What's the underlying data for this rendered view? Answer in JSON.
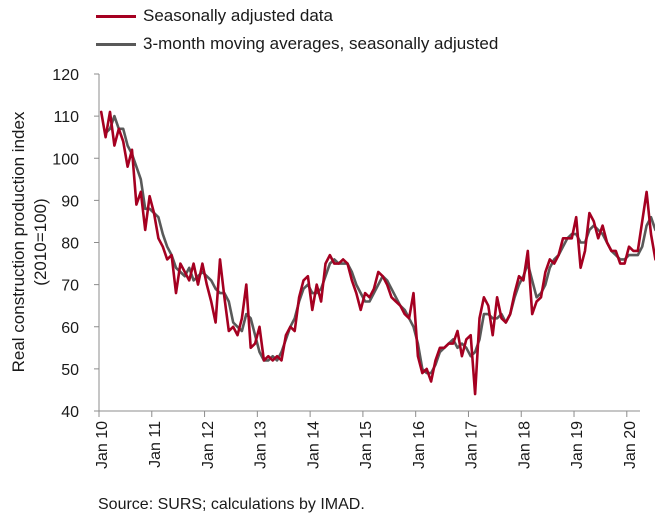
{
  "chart_data": {
    "type": "line",
    "ylabel_line1": "Real construction production index",
    "ylabel_line2": "(2010=100)",
    "ylim": [
      40,
      120
    ],
    "yticks": [
      40,
      50,
      60,
      70,
      80,
      90,
      100,
      110,
      120
    ],
    "xticks": [
      "Jan 10",
      "Jan 11",
      "Jan 12",
      "Jan 13",
      "Jan 14",
      "Jan 15",
      "Jan 16",
      "Jan 17",
      "Jan 18",
      "Jan 19",
      "Jan 20"
    ],
    "x_start": "2010-01",
    "x_end": "2020-03",
    "grid": false,
    "legend_position": "top-left",
    "series": [
      {
        "name": "Seasonally adjusted data",
        "color": "#a50021",
        "values": [
          111,
          105,
          111,
          103,
          107,
          104,
          98,
          102,
          89,
          92,
          83,
          91,
          87,
          81,
          79,
          76,
          77,
          68,
          75,
          73,
          71,
          75,
          70,
          75,
          70,
          66,
          61,
          76,
          67,
          59,
          60,
          58,
          62,
          70,
          55,
          56,
          60,
          52,
          53,
          52,
          53,
          52,
          58,
          60,
          59,
          67,
          71,
          72,
          64,
          70,
          66,
          75,
          77,
          75,
          75,
          76,
          75,
          71,
          68,
          64,
          68,
          67,
          69,
          73,
          72,
          70,
          67,
          66,
          65,
          63,
          62,
          68,
          53,
          49,
          50,
          47,
          52,
          55,
          55,
          56,
          56,
          59,
          53,
          57,
          58,
          44,
          62,
          67,
          65,
          58,
          67,
          62,
          61,
          63,
          68,
          72,
          71,
          78,
          63,
          66,
          67,
          73,
          76,
          75,
          77,
          81,
          81,
          81,
          86,
          74,
          78,
          87,
          85,
          81,
          84,
          80,
          78,
          78,
          75,
          75,
          79,
          78,
          78,
          85,
          92,
          82,
          76
        ],
        "x_start": "2010-01"
      },
      {
        "name": "3-month moving averages, seasonally adjusted",
        "color": "#595959",
        "values": [
          106,
          107,
          110,
          107,
          107,
          103,
          101,
          98,
          95,
          88,
          88,
          87,
          86,
          82,
          79,
          77,
          74,
          73,
          72,
          74,
          71,
          72,
          73,
          72,
          71,
          69,
          68,
          68,
          66,
          61,
          60,
          59,
          63,
          62,
          58,
          54,
          52,
          52,
          53,
          52,
          54,
          57,
          60,
          62,
          66,
          69,
          70,
          68,
          68,
          69,
          72,
          75,
          76,
          75,
          75,
          75,
          73,
          70,
          68,
          66,
          66,
          68,
          70,
          72,
          71,
          69,
          67,
          65,
          64,
          62,
          60,
          56,
          50,
          49,
          49,
          51,
          54,
          55,
          56,
          57,
          55,
          56,
          55,
          53,
          54,
          57,
          63,
          63,
          62,
          62,
          63,
          61,
          63,
          67,
          70,
          72,
          75,
          71,
          67,
          68,
          70,
          74,
          76,
          77,
          79,
          81,
          82,
          82,
          80,
          80,
          83,
          84,
          83,
          82,
          80,
          78,
          77,
          76,
          76,
          77,
          77,
          77,
          79,
          84,
          86,
          83
        ],
        "x_start": "2010-02"
      }
    ]
  },
  "source": "Source: SURS; calculations by IMAD."
}
